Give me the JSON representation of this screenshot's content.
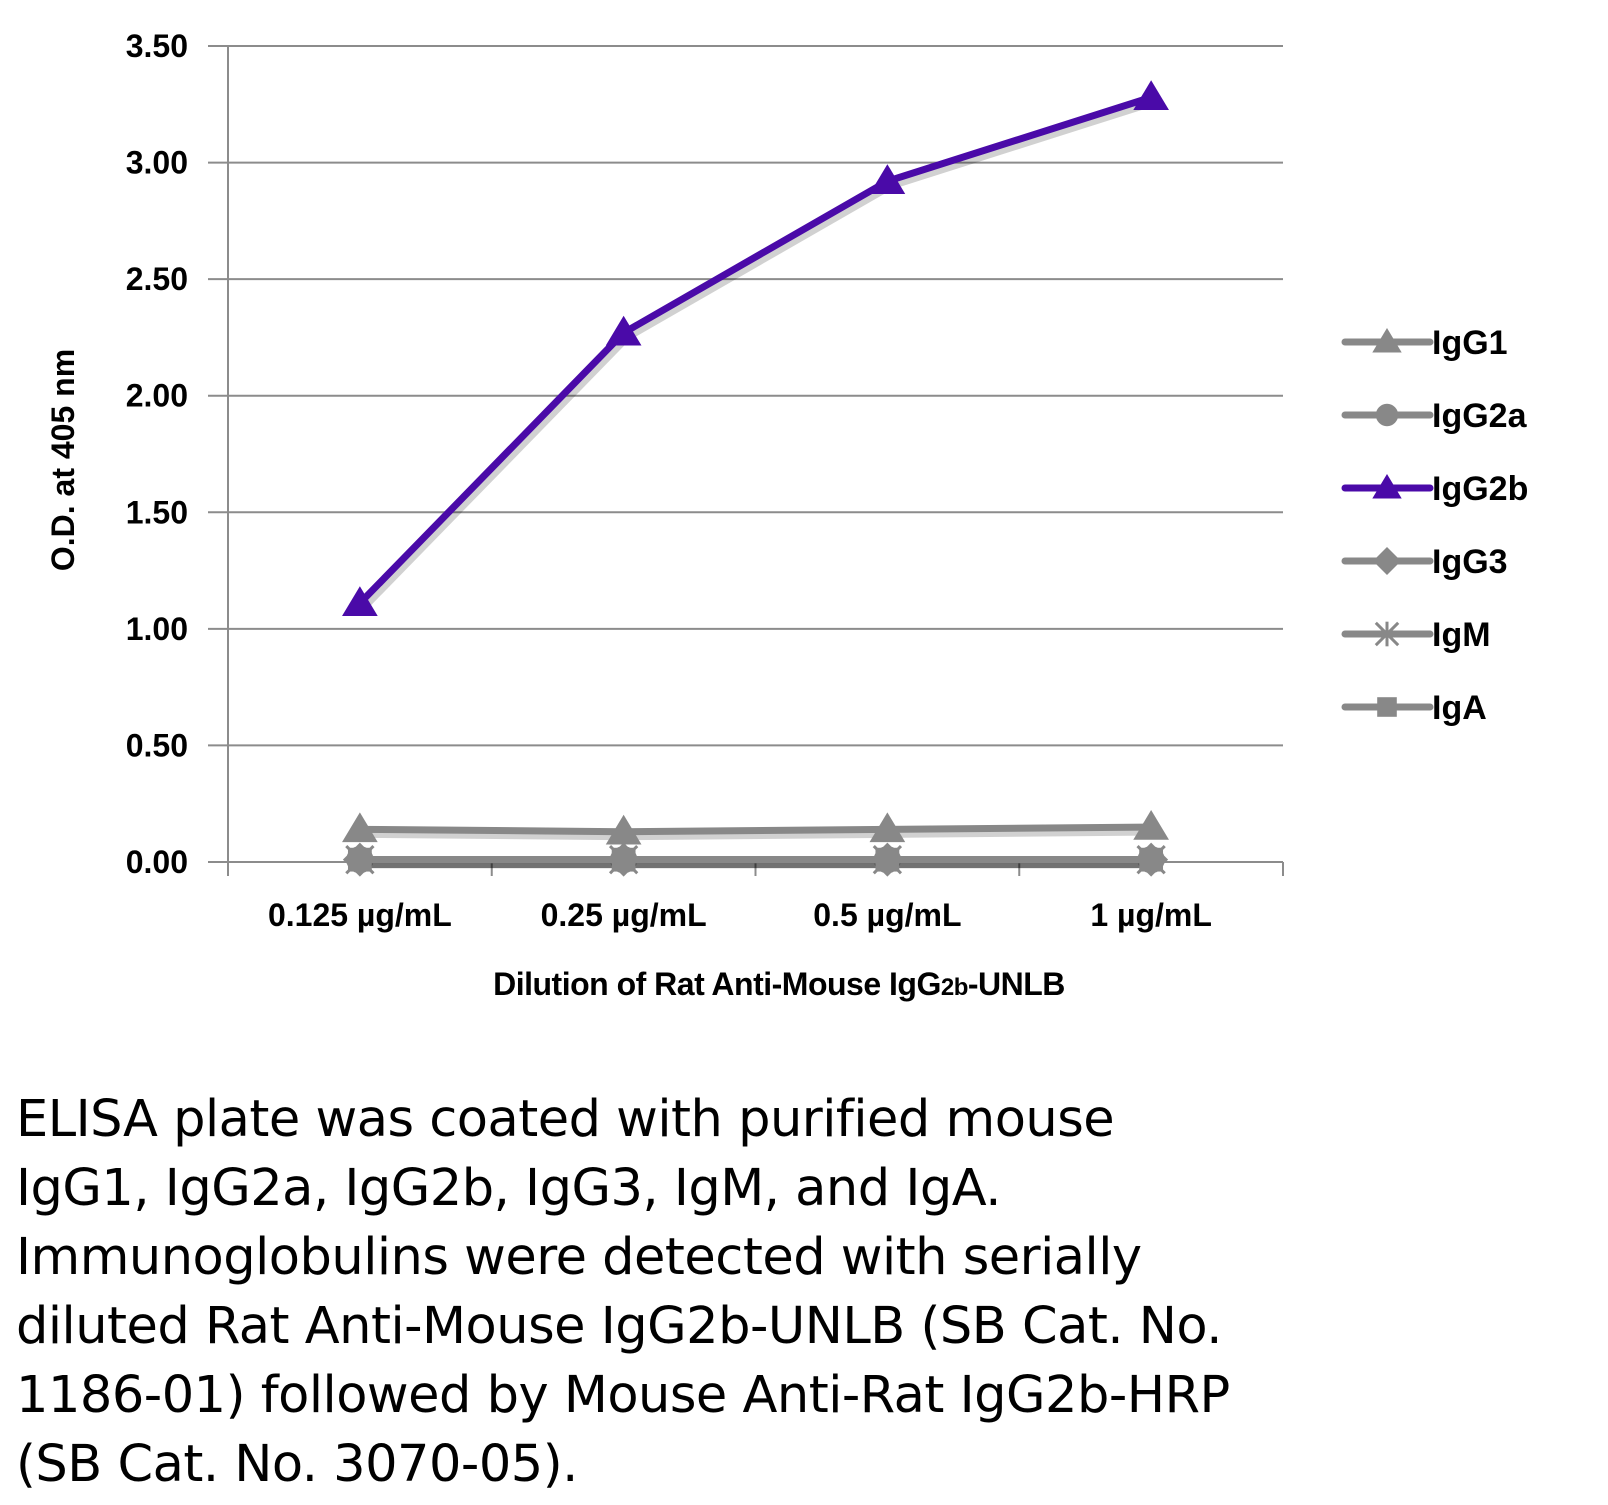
{
  "chart_data": {
    "type": "line",
    "title": "",
    "xlabel": "Dilution of Rat Anti-Mouse IgG",
    "xlabel_subscript": "2b",
    "xlabel_suffix": "-UNLB",
    "ylabel": "O.D. at 405 nm",
    "ylim": [
      0,
      3.5
    ],
    "yticks": [
      "0.00",
      "0.50",
      "1.00",
      "1.50",
      "2.00",
      "2.50",
      "3.00",
      "3.50"
    ],
    "ytick_values": [
      0,
      0.5,
      1.0,
      1.5,
      2.0,
      2.5,
      3.0,
      3.5
    ],
    "categories": [
      "0.125 µg/mL",
      "0.25 µg/mL",
      "0.5 µg/mL",
      "1 µg/mL"
    ],
    "grid": true,
    "legend_position": "right",
    "series": [
      {
        "name": "IgG1",
        "values": [
          0.14,
          0.13,
          0.14,
          0.15
        ],
        "color": "#888888",
        "marker": "triangle"
      },
      {
        "name": "IgG2a",
        "values": [
          0.01,
          0.01,
          0.01,
          0.01
        ],
        "color": "#888888",
        "marker": "circle"
      },
      {
        "name": "IgG2b",
        "values": [
          1.11,
          2.27,
          2.92,
          3.28
        ],
        "color": "#4a0aa8",
        "marker": "triangle"
      },
      {
        "name": "IgG3",
        "values": [
          0.01,
          0.01,
          0.01,
          0.01
        ],
        "color": "#888888",
        "marker": "diamond"
      },
      {
        "name": "IgM",
        "values": [
          0.01,
          0.01,
          0.01,
          0.01
        ],
        "color": "#888888",
        "marker": "x"
      },
      {
        "name": "IgA",
        "values": [
          0.01,
          0.01,
          0.01,
          0.01
        ],
        "color": "#888888",
        "marker": "square"
      }
    ]
  },
  "caption": {
    "lines": [
      "ELISA plate was coated with purified mouse",
      "IgG1, IgG2a, IgG2b, IgG3, IgM, and IgA.",
      "Immunoglobulins were detected with serially",
      "diluted Rat Anti-Mouse IgG2b-UNLB (SB Cat. No.",
      "1186-01) followed by Mouse Anti-Rat IgG2b-HRP",
      "(SB Cat. No. 3070-05)."
    ]
  }
}
